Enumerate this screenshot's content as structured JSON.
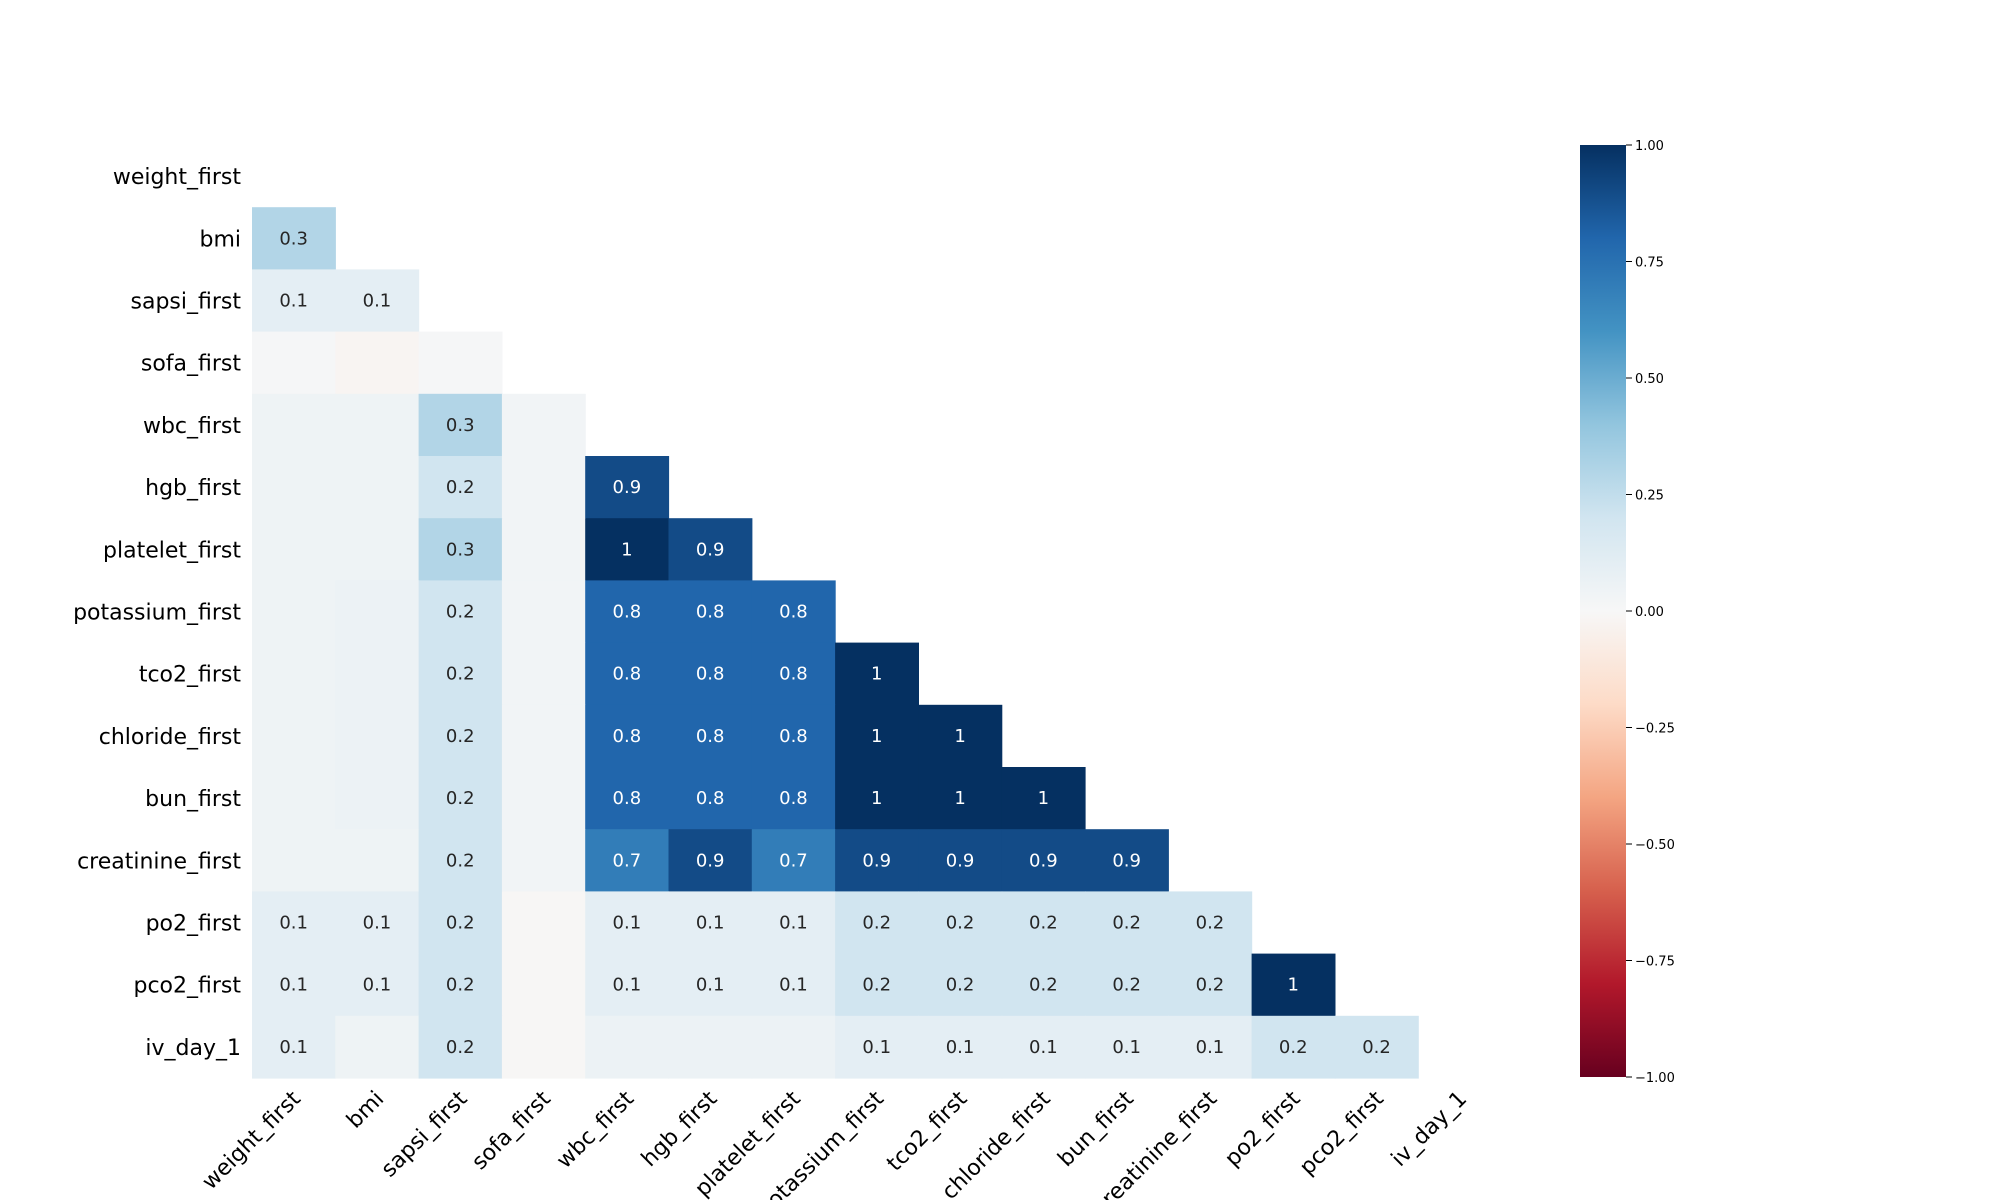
{
  "chart_data": {
    "type": "heatmap",
    "title": "",
    "xlabel": "",
    "ylabel": "",
    "triangle": "lower",
    "labels": [
      "weight_first",
      "bmi",
      "sapsi_first",
      "sofa_first",
      "wbc_first",
      "hgb_first",
      "platelet_first",
      "potassium_first",
      "tco2_first",
      "chloride_first",
      "bun_first",
      "creatinine_first",
      "po2_first",
      "pco2_first",
      "iv_day_1"
    ],
    "cells": [
      [
        1,
        0,
        0.3,
        "0.3"
      ],
      [
        2,
        0,
        0.1,
        "0.1"
      ],
      [
        2,
        1,
        0.1,
        "0.1"
      ],
      [
        3,
        0,
        0.01,
        ""
      ],
      [
        3,
        1,
        -0.02,
        ""
      ],
      [
        3,
        2,
        0.01,
        ""
      ],
      [
        4,
        0,
        0.05,
        ""
      ],
      [
        4,
        1,
        0.05,
        ""
      ],
      [
        4,
        2,
        0.3,
        "0.3"
      ],
      [
        4,
        3,
        0.03,
        ""
      ],
      [
        5,
        0,
        0.05,
        ""
      ],
      [
        5,
        1,
        0.05,
        ""
      ],
      [
        5,
        2,
        0.2,
        "0.2"
      ],
      [
        5,
        3,
        0.03,
        ""
      ],
      [
        5,
        4,
        0.9,
        "0.9"
      ],
      [
        6,
        0,
        0.05,
        ""
      ],
      [
        6,
        1,
        0.05,
        ""
      ],
      [
        6,
        2,
        0.3,
        "0.3"
      ],
      [
        6,
        3,
        0.03,
        ""
      ],
      [
        6,
        4,
        1,
        "1"
      ],
      [
        6,
        5,
        0.9,
        "0.9"
      ],
      [
        7,
        0,
        0.05,
        ""
      ],
      [
        7,
        1,
        0.06,
        ""
      ],
      [
        7,
        2,
        0.2,
        "0.2"
      ],
      [
        7,
        3,
        0.03,
        ""
      ],
      [
        7,
        4,
        0.8,
        "0.8"
      ],
      [
        7,
        5,
        0.8,
        "0.8"
      ],
      [
        7,
        6,
        0.8,
        "0.8"
      ],
      [
        8,
        0,
        0.05,
        ""
      ],
      [
        8,
        1,
        0.06,
        ""
      ],
      [
        8,
        2,
        0.2,
        "0.2"
      ],
      [
        8,
        3,
        0.03,
        ""
      ],
      [
        8,
        4,
        0.8,
        "0.8"
      ],
      [
        8,
        5,
        0.8,
        "0.8"
      ],
      [
        8,
        6,
        0.8,
        "0.8"
      ],
      [
        8,
        7,
        1,
        "1"
      ],
      [
        9,
        0,
        0.05,
        ""
      ],
      [
        9,
        1,
        0.06,
        ""
      ],
      [
        9,
        2,
        0.2,
        "0.2"
      ],
      [
        9,
        3,
        0.03,
        ""
      ],
      [
        9,
        4,
        0.8,
        "0.8"
      ],
      [
        9,
        5,
        0.8,
        "0.8"
      ],
      [
        9,
        6,
        0.8,
        "0.8"
      ],
      [
        9,
        7,
        1,
        "1"
      ],
      [
        9,
        8,
        1,
        "1"
      ],
      [
        10,
        0,
        0.05,
        ""
      ],
      [
        10,
        1,
        0.06,
        ""
      ],
      [
        10,
        2,
        0.2,
        "0.2"
      ],
      [
        10,
        3,
        0.03,
        ""
      ],
      [
        10,
        4,
        0.8,
        "0.8"
      ],
      [
        10,
        5,
        0.8,
        "0.8"
      ],
      [
        10,
        6,
        0.8,
        "0.8"
      ],
      [
        10,
        7,
        1,
        "1"
      ],
      [
        10,
        8,
        1,
        "1"
      ],
      [
        10,
        9,
        1,
        "1"
      ],
      [
        11,
        0,
        0.05,
        ""
      ],
      [
        11,
        1,
        0.05,
        ""
      ],
      [
        11,
        2,
        0.2,
        "0.2"
      ],
      [
        11,
        3,
        0.03,
        ""
      ],
      [
        11,
        4,
        0.7,
        "0.7"
      ],
      [
        11,
        5,
        0.9,
        "0.9"
      ],
      [
        11,
        6,
        0.7,
        "0.7"
      ],
      [
        11,
        7,
        0.9,
        "0.9"
      ],
      [
        11,
        8,
        0.9,
        "0.9"
      ],
      [
        11,
        9,
        0.9,
        "0.9"
      ],
      [
        11,
        10,
        0.9,
        "0.9"
      ],
      [
        12,
        0,
        0.1,
        "0.1"
      ],
      [
        12,
        1,
        0.1,
        "0.1"
      ],
      [
        12,
        2,
        0.2,
        "0.2"
      ],
      [
        12,
        3,
        -0.01,
        ""
      ],
      [
        12,
        4,
        0.1,
        "0.1"
      ],
      [
        12,
        5,
        0.1,
        "0.1"
      ],
      [
        12,
        6,
        0.1,
        "0.1"
      ],
      [
        12,
        7,
        0.2,
        "0.2"
      ],
      [
        12,
        8,
        0.2,
        "0.2"
      ],
      [
        12,
        9,
        0.2,
        "0.2"
      ],
      [
        12,
        10,
        0.2,
        "0.2"
      ],
      [
        12,
        11,
        0.2,
        "0.2"
      ],
      [
        13,
        0,
        0.1,
        "0.1"
      ],
      [
        13,
        1,
        0.1,
        "0.1"
      ],
      [
        13,
        2,
        0.2,
        "0.2"
      ],
      [
        13,
        3,
        -0.01,
        ""
      ],
      [
        13,
        4,
        0.1,
        "0.1"
      ],
      [
        13,
        5,
        0.1,
        "0.1"
      ],
      [
        13,
        6,
        0.1,
        "0.1"
      ],
      [
        13,
        7,
        0.2,
        "0.2"
      ],
      [
        13,
        8,
        0.2,
        "0.2"
      ],
      [
        13,
        9,
        0.2,
        "0.2"
      ],
      [
        13,
        10,
        0.2,
        "0.2"
      ],
      [
        13,
        11,
        0.2,
        "0.2"
      ],
      [
        13,
        12,
        1,
        "1"
      ],
      [
        14,
        0,
        0.1,
        "0.1"
      ],
      [
        14,
        1,
        0.05,
        ""
      ],
      [
        14,
        2,
        0.2,
        "0.2"
      ],
      [
        14,
        3,
        -0.01,
        ""
      ],
      [
        14,
        4,
        0.06,
        ""
      ],
      [
        14,
        5,
        0.06,
        ""
      ],
      [
        14,
        6,
        0.06,
        ""
      ],
      [
        14,
        7,
        0.1,
        "0.1"
      ],
      [
        14,
        8,
        0.1,
        "0.1"
      ],
      [
        14,
        9,
        0.1,
        "0.1"
      ],
      [
        14,
        10,
        0.1,
        "0.1"
      ],
      [
        14,
        11,
        0.1,
        "0.1"
      ],
      [
        14,
        12,
        0.2,
        "0.2"
      ],
      [
        14,
        13,
        0.2,
        "0.2"
      ]
    ],
    "colorbar": {
      "range": [
        -1,
        1
      ],
      "ticks": [
        1,
        0.75,
        0.5,
        0.25,
        0,
        -0.25,
        -0.5,
        -0.75,
        -1
      ],
      "tick_labels": [
        "1.00",
        "0.75",
        "0.50",
        "0.25",
        "0.00",
        "−0.25",
        "−0.50",
        "−0.75",
        "−1.00"
      ]
    },
    "colormap": {
      "name": "RdBu",
      "stops": [
        "#67001f",
        "#b2182b",
        "#d6604d",
        "#f4a582",
        "#fddbc7",
        "#f7f7f7",
        "#d1e5f0",
        "#92c5de",
        "#4393c3",
        "#2166ac",
        "#053061"
      ]
    },
    "grid": false
  }
}
